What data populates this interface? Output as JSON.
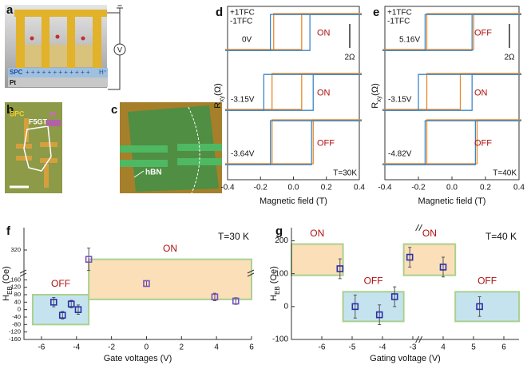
{
  "panel_a": {
    "label": "a",
    "spc": "SPC",
    "pt": "Pt",
    "meter": "V",
    "charges": "+ + + + + + + + + + + +",
    "proton": "H⁺"
  },
  "panel_b": {
    "label": "b",
    "spc": "SPC",
    "flake": "F5GT",
    "pt": "Pt"
  },
  "panel_c": {
    "label": "c",
    "hbn": "hBN"
  },
  "chart_data": [
    {
      "type": "hysteresis",
      "label": "d",
      "series": [
        {
          "name": "+1TFC",
          "color": "#e8892a"
        },
        {
          "name": "-1TFC",
          "color": "#3a86c8"
        }
      ],
      "loops": [
        {
          "voltage": "0V",
          "state": "ON",
          "switch": [
            [
              -0.12,
              0.05
            ],
            [
              -0.14,
              0.1
            ]
          ]
        },
        {
          "voltage": "-3.15V",
          "state": "ON",
          "switch": [
            [
              -0.13,
              0.05
            ],
            [
              -0.18,
              0.12
            ]
          ]
        },
        {
          "voltage": "-3.64V",
          "state": "OFF",
          "switch": [
            [
              -0.13,
              0.12
            ],
            [
              -0.14,
              0.11
            ]
          ]
        }
      ],
      "scale_bar": "2Ω",
      "temperature": "T=30K",
      "xlabel": "Magnetic field (T)",
      "ylabel": "R",
      "ylabel_sub": "xy",
      "ylabel_unit": "(Ω)",
      "xlim": [
        -0.4,
        0.4
      ],
      "xticks": [
        -0.4,
        -0.2,
        {
          "value": 0,
          "label": "0.0"
        },
        0.2,
        0.4
      ]
    },
    {
      "type": "hysteresis",
      "label": "e",
      "series": [
        {
          "name": "+1TFC",
          "color": "#e8892a"
        },
        {
          "name": "-1TFC",
          "color": "#3a86c8"
        }
      ],
      "loops": [
        {
          "voltage": "5.16V",
          "state": "OFF",
          "switch": [
            [
              -0.15,
              0.13
            ],
            [
              -0.16,
              0.12
            ]
          ]
        },
        {
          "voltage": "-3.15V",
          "state": "ON",
          "switch": [
            [
              -0.15,
              0.05
            ],
            [
              -0.2,
              0.12
            ]
          ]
        },
        {
          "voltage": "-4.82V",
          "state": "OFF",
          "switch": [
            [
              -0.15,
              0.15
            ],
            [
              -0.16,
              0.14
            ]
          ]
        }
      ],
      "scale_bar": "2Ω",
      "temperature": "T=40K",
      "xlabel": "Magnetic field (T)",
      "ylabel": "R",
      "ylabel_sub": "xy",
      "ylabel_unit": "(Ω)",
      "xlim": [
        -0.4,
        0.4
      ],
      "xticks": [
        -0.4,
        -0.2,
        {
          "value": 0,
          "label": "0.0"
        },
        0.2,
        0.4
      ]
    },
    {
      "type": "scatter",
      "label": "f",
      "xlabel": "Gate voltages (V)",
      "ylabel": "H",
      "ylabel_sub": "EB",
      "ylabel_unit": " (Oe)",
      "temperature": "T=30 K",
      "outline_color": "#a9d18e",
      "xlim": [
        -7,
        6
      ],
      "xticks": [
        -6,
        -4,
        -2,
        0,
        2,
        4,
        6
      ],
      "ylim": [
        -160,
        440
      ],
      "yticks": [
        -160,
        -120,
        -80,
        -40,
        0,
        40,
        80,
        120,
        160,
        320
      ],
      "ybreak": 200,
      "regions": [
        {
          "label": "OFF",
          "x": [
            -6.5,
            -3.3
          ],
          "y": [
            -80,
            80
          ],
          "color": "#c5e3ee"
        },
        {
          "label": "ON",
          "x": [
            -3.3,
            6
          ],
          "y": [
            55,
            270
          ],
          "color": "#fbdfb9"
        }
      ],
      "series": [
        {
          "color": "#2b30a8",
          "x": [
            -5.3,
            -4.8,
            -4.3,
            -3.9
          ],
          "values": [
            40,
            -30,
            30,
            0
          ],
          "errors": [
            25,
            20,
            20,
            25
          ]
        },
        {
          "color": "#7b52c1",
          "x": [
            -3.3,
            0,
            3.9,
            5.1
          ],
          "values": [
            270,
            140,
            68,
            46
          ],
          "errors": [
            60,
            15,
            20,
            18
          ]
        }
      ]
    },
    {
      "type": "scatter",
      "label": "g",
      "xlabel": "Gating voltage (V)",
      "ylabel": "H",
      "ylabel_sub": "EB",
      "ylabel_unit": " (Oe)",
      "temperature": "T=40 K",
      "outline_color": "#a9d18e",
      "xlim": [
        -7,
        6.5
      ],
      "xbreak": [
        -2.8,
        3.2
      ],
      "xticks": [
        -6,
        -5,
        -4,
        -3,
        4,
        5,
        6
      ],
      "ylim": [
        -100,
        240
      ],
      "yticks": [
        -100,
        0,
        100,
        200
      ],
      "regions": [
        {
          "label": "ON",
          "x": [
            -7,
            -5.3
          ],
          "y": [
            95,
            190
          ],
          "color": "#fbdfb9"
        },
        {
          "label": "OFF",
          "x": [
            -5.3,
            -3.3
          ],
          "y": [
            -45,
            45
          ],
          "color": "#c5e3ee"
        },
        {
          "label": "ON",
          "x": [
            -3.3,
            4.4
          ],
          "y": [
            95,
            190
          ],
          "color": "#fbdfb9"
        },
        {
          "label": "OFF",
          "x": [
            4.4,
            6.5
          ],
          "y": [
            -45,
            45
          ],
          "color": "#c5e3ee"
        }
      ],
      "series": [
        {
          "color": "#2b30a8",
          "x": [
            -5.4,
            -4.9,
            -4.1,
            -3.6,
            -3.1,
            4,
            5.2
          ],
          "values": [
            115,
            0,
            -25,
            30,
            150,
            120,
            0
          ],
          "errors": [
            30,
            35,
            30,
            30,
            30,
            30,
            30
          ]
        }
      ]
    }
  ]
}
